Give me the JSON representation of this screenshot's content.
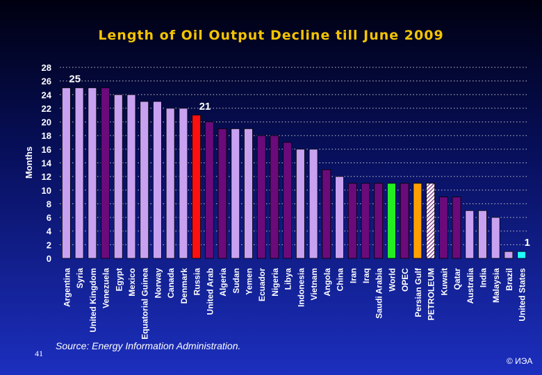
{
  "slide": {
    "page_number": "41",
    "source": "Source: Energy Information Administration.",
    "copyright": "© ИЭА"
  },
  "colors": {
    "lavender": "#c8a2f0",
    "purple": "#6b0a7a",
    "red": "#ff1010",
    "green": "#22ee22",
    "orange": "#ffa000",
    "cyan": "#22ffff",
    "grid": "#c8c8c8",
    "title": "#f4c400",
    "text": "#ffffff"
  },
  "chart_data": {
    "type": "bar",
    "title": "Length of Oil Output Decline till June 2009",
    "xlabel": "",
    "ylabel": "Months",
    "ylim": [
      0,
      28
    ],
    "yticks": [
      0,
      2,
      4,
      6,
      8,
      10,
      12,
      14,
      16,
      18,
      20,
      22,
      24,
      26,
      28
    ],
    "grid": true,
    "categories": [
      "Argentina",
      "Syria",
      "United Kingdom",
      "Venezuela",
      "Egypt",
      "Mexico",
      "Equatorial Guinea",
      "Norway",
      "Canada",
      "Denmark",
      "Russia",
      "United Arab",
      "Algeria",
      "Sudan",
      "Yemen",
      "Ecuador",
      "Nigeria",
      "Libya",
      "Indonesia",
      "Vietnam",
      "Angola",
      "China",
      "Iran",
      "Iraq",
      "Saudi Arabia",
      "World",
      "OPEC",
      "Persian Gulf",
      "PETROLEUM",
      "Kuwait",
      "Qatar",
      "Australia",
      "India",
      "Malaysia",
      "Brazil",
      "United States"
    ],
    "values": [
      25,
      25,
      25,
      25,
      24,
      24,
      23,
      23,
      22,
      22,
      21,
      20,
      19,
      19,
      19,
      18,
      18,
      17,
      16,
      16,
      13,
      12,
      11,
      11,
      11,
      11,
      11,
      11,
      11,
      9,
      9,
      7,
      7,
      6,
      1,
      1
    ],
    "bar_colors": [
      "lavender",
      "lavender",
      "lavender",
      "purple",
      "lavender",
      "lavender",
      "lavender",
      "lavender",
      "lavender",
      "lavender",
      "red",
      "purple",
      "purple",
      "lavender",
      "lavender",
      "purple",
      "purple",
      "purple",
      "lavender",
      "lavender",
      "purple",
      "lavender",
      "purple",
      "purple",
      "purple",
      "green",
      "purple",
      "orange",
      "hatched",
      "purple",
      "purple",
      "lavender",
      "lavender",
      "lavender",
      "lavender",
      "cyan"
    ],
    "annotations": [
      {
        "label": "25",
        "category": "Argentina"
      },
      {
        "label": "21",
        "category": "Russia"
      },
      {
        "label": "1",
        "category": "United States"
      }
    ]
  }
}
